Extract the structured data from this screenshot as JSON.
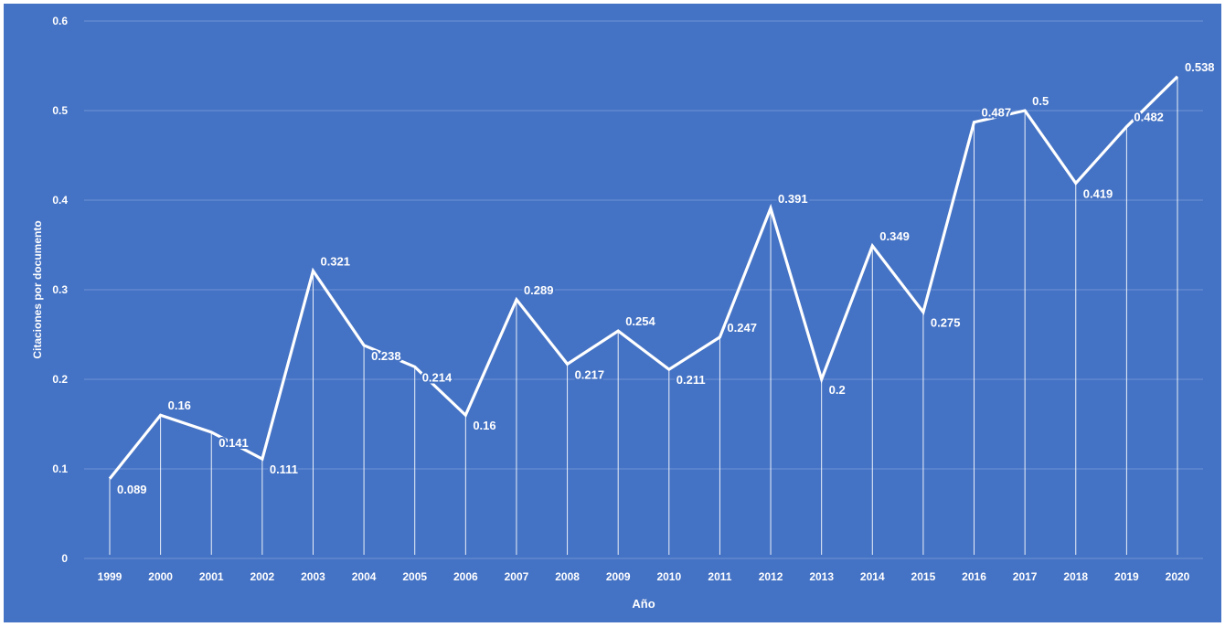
{
  "chart_data": {
    "type": "line",
    "title": "",
    "xlabel": "Año",
    "ylabel": "Citaciones por documento",
    "categories": [
      "1999",
      "2000",
      "2001",
      "2002",
      "2003",
      "2004",
      "2005",
      "2006",
      "2007",
      "2008",
      "2009",
      "2010",
      "2011",
      "2012",
      "2013",
      "2014",
      "2015",
      "2016",
      "2017",
      "2018",
      "2019",
      "2020"
    ],
    "series": [
      {
        "values": [
          0.089,
          0.16,
          0.141,
          0.111,
          0.321,
          0.238,
          0.214,
          0.16,
          0.289,
          0.217,
          0.254,
          0.211,
          0.247,
          0.391,
          0.2,
          0.349,
          0.275,
          0.487,
          0.5,
          0.419,
          0.482,
          0.538
        ],
        "data_labels": [
          "0.089",
          "0.16",
          "0.141",
          "0.111",
          "0.321",
          "0.238",
          "0.214",
          "0.16",
          "0.289",
          "0.217",
          "0.254",
          "0.211",
          "0.247",
          "0.391",
          "0.2",
          "0.349",
          "0.275",
          "0.487",
          "0.5",
          "0.419",
          "0.482",
          "0.538"
        ]
      }
    ],
    "ylim": [
      0,
      0.6
    ],
    "yticks": [
      "0",
      "0.1",
      "0.2",
      "0.3",
      "0.4",
      "0.5",
      "0.6"
    ],
    "grid": true,
    "drop_lines": true,
    "colors": {
      "background": "#4472C4",
      "line": "#FFFFFF",
      "grid": "#6F94D6",
      "text": "#FFFFFF"
    }
  }
}
